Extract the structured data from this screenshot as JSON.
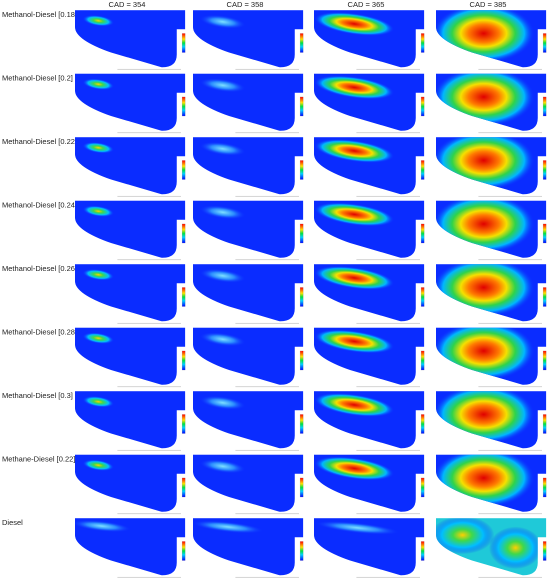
{
  "column_headers": [
    "CAD = 354",
    "CAD = 358",
    "CAD = 365",
    "CAD = 385"
  ],
  "rows": [
    {
      "label": "Methanol-Diesel [0.18]"
    },
    {
      "label": "Methanol-Diesel [0.2]"
    },
    {
      "label": "Methanol-Diesel [0.22]"
    },
    {
      "label": "Methanol-Diesel [0.24]"
    },
    {
      "label": "Methanol-Diesel [0.26]"
    },
    {
      "label": "Methanol-Diesel [0.28]"
    },
    {
      "label": "Methanol-Diesel [0.3]"
    },
    {
      "label": "Methane-Diesel [0.22]"
    },
    {
      "label": "Diesel"
    }
  ]
}
